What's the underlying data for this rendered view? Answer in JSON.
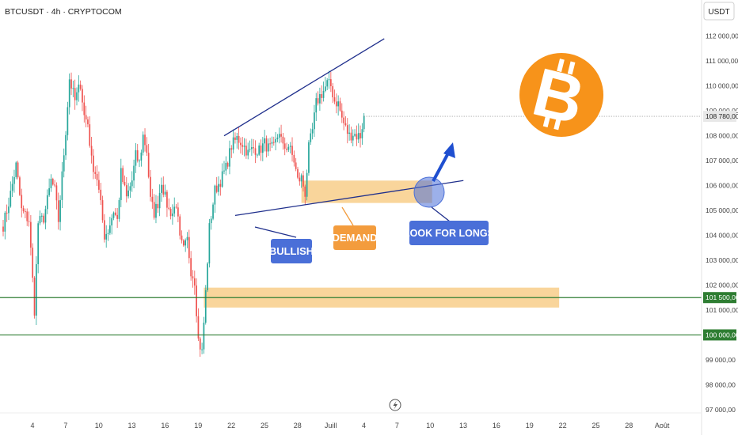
{
  "header": {
    "symbol_title": "BTCUSDT · 4h · CRYPTOCOM",
    "currency": "USDT"
  },
  "colors": {
    "up": "#26a69a",
    "down": "#ef5350",
    "trendline": "#1f2f8c",
    "zone": "#f7c77a",
    "support": "#2e7d32",
    "label_blue": "#4a6fd8",
    "label_orange": "#f39c3d",
    "price_badge": "#e8e8e8",
    "bitcoin": "#f7931a"
  },
  "chart_data": {
    "type": "candlestick",
    "ylim": [
      96900,
      112500
    ],
    "y_ticks": [
      "112 000,00",
      "111 000,00",
      "110 000,00",
      "109 000,00",
      "108 000,00",
      "107 000,00",
      "106 000,00",
      "105 000,00",
      "104 000,00",
      "103 000,00",
      "102 000,00",
      "101 000,00",
      "99 000,00",
      "98 000,00",
      "97 000,00"
    ],
    "y_tick_values": [
      112000,
      111000,
      110000,
      109000,
      108000,
      107000,
      106000,
      105000,
      104000,
      103000,
      102000,
      101000,
      99000,
      98000,
      97000
    ],
    "x_ticks": [
      "4",
      "7",
      "10",
      "13",
      "16",
      "19",
      "22",
      "25",
      "28",
      "Juill",
      "4",
      "7",
      "10",
      "13",
      "16",
      "19",
      "22",
      "25",
      "28",
      "Août"
    ],
    "x_tick_index": [
      0,
      18,
      36,
      54,
      72,
      90,
      108,
      126,
      144,
      162,
      180,
      198,
      216,
      234,
      252,
      270,
      288,
      306,
      324,
      342
    ],
    "anchors": [
      [
        0,
        104400
      ],
      [
        3,
        105300
      ],
      [
        7,
        106800
      ],
      [
        10,
        105000
      ],
      [
        14,
        104600
      ],
      [
        16,
        102200
      ],
      [
        17,
        101000
      ],
      [
        19,
        104500
      ],
      [
        22,
        104700
      ],
      [
        24,
        105400
      ],
      [
        26,
        106200
      ],
      [
        28,
        105800
      ],
      [
        30,
        104600
      ],
      [
        34,
        108200
      ],
      [
        36,
        110300
      ],
      [
        39,
        109400
      ],
      [
        42,
        110100
      ],
      [
        44,
        108800
      ],
      [
        46,
        108500
      ],
      [
        48,
        107000
      ],
      [
        51,
        106300
      ],
      [
        53,
        105200
      ],
      [
        55,
        104000
      ],
      [
        57,
        104200
      ],
      [
        60,
        105000
      ],
      [
        62,
        104600
      ],
      [
        64,
        106500
      ],
      [
        67,
        105500
      ],
      [
        70,
        106200
      ],
      [
        72,
        107200
      ],
      [
        74,
        106900
      ],
      [
        76,
        108000
      ],
      [
        78,
        107400
      ],
      [
        80,
        105400
      ],
      [
        82,
        104900
      ],
      [
        84,
        105300
      ],
      [
        86,
        106200
      ],
      [
        88,
        105500
      ],
      [
        90,
        105000
      ],
      [
        92,
        104900
      ],
      [
        94,
        105300
      ],
      [
        96,
        103800
      ],
      [
        98,
        103400
      ],
      [
        100,
        103800
      ],
      [
        102,
        102600
      ],
      [
        104,
        102200
      ],
      [
        106,
        99800
      ],
      [
        108,
        99300
      ],
      [
        110,
        101700
      ],
      [
        112,
        104300
      ],
      [
        115,
        105800
      ],
      [
        118,
        106200
      ],
      [
        121,
        106700
      ],
      [
        124,
        107600
      ],
      [
        127,
        107900
      ],
      [
        130,
        107700
      ],
      [
        133,
        107300
      ],
      [
        136,
        107500
      ],
      [
        139,
        107400
      ],
      [
        142,
        107700
      ],
      [
        144,
        107500
      ],
      [
        147,
        107500
      ],
      [
        150,
        108200
      ],
      [
        152,
        107500
      ],
      [
        155,
        107600
      ],
      [
        158,
        107000
      ],
      [
        160,
        106200
      ],
      [
        162,
        106300
      ],
      [
        164,
        105700
      ],
      [
        166,
        107500
      ],
      [
        168,
        108200
      ],
      [
        170,
        109300
      ],
      [
        172,
        109600
      ],
      [
        174,
        109800
      ],
      [
        176,
        110100
      ],
      [
        178,
        110000
      ],
      [
        180,
        109400
      ],
      [
        182,
        109300
      ],
      [
        184,
        108700
      ],
      [
        186,
        108300
      ],
      [
        188,
        108000
      ],
      [
        190,
        108100
      ],
      [
        192,
        108000
      ],
      [
        194,
        108000
      ],
      [
        196,
        108800
      ]
    ],
    "last_price_label": "108 780,00",
    "last_price_value": 108780,
    "support_levels": [
      {
        "value": 101500,
        "label": "101 500,00"
      },
      {
        "value": 100000,
        "label": "100 000,00"
      }
    ],
    "zones": [
      {
        "x0": 162,
        "x1": 233,
        "y0": 105300,
        "y1": 106200
      },
      {
        "x0": 109,
        "x1": 302,
        "y0": 101100,
        "y1": 101900
      }
    ],
    "trendlines": [
      {
        "x0": 120,
        "y0": 108000,
        "x1": 207,
        "y1": 111900
      },
      {
        "x0": 126,
        "y0": 104800,
        "x1": 250,
        "y1": 106200
      }
    ]
  },
  "annotations": {
    "bullish": "BULLISH",
    "demand": "DEMAND",
    "look_for_longs": "LOOK FOR LONGS",
    "bitcoin_symbol": "B"
  }
}
